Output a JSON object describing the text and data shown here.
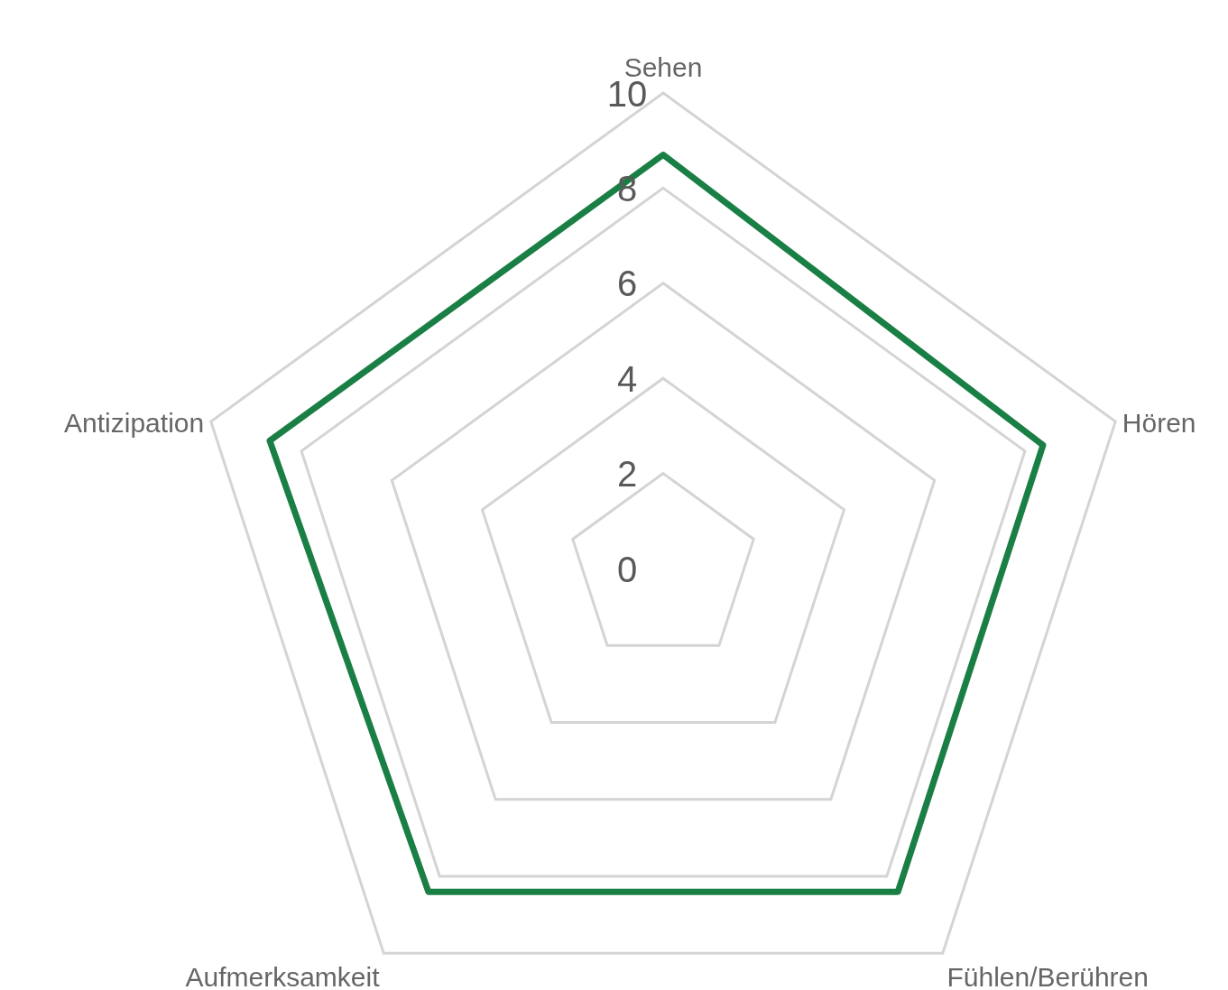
{
  "chart_data": {
    "type": "radar",
    "categories": [
      "Sehen",
      "Hören",
      "Fühlen/Berühren",
      "Aufmerksamkeit",
      "Antizipation"
    ],
    "series": [
      {
        "color": "#1a7f45",
        "values": [
          8.7,
          8.4,
          8.4,
          8.4,
          8.7
        ]
      }
    ],
    "ylim": [
      0,
      10
    ],
    "yticks": [
      0,
      2,
      4,
      6,
      8,
      10
    ],
    "grid": true
  }
}
